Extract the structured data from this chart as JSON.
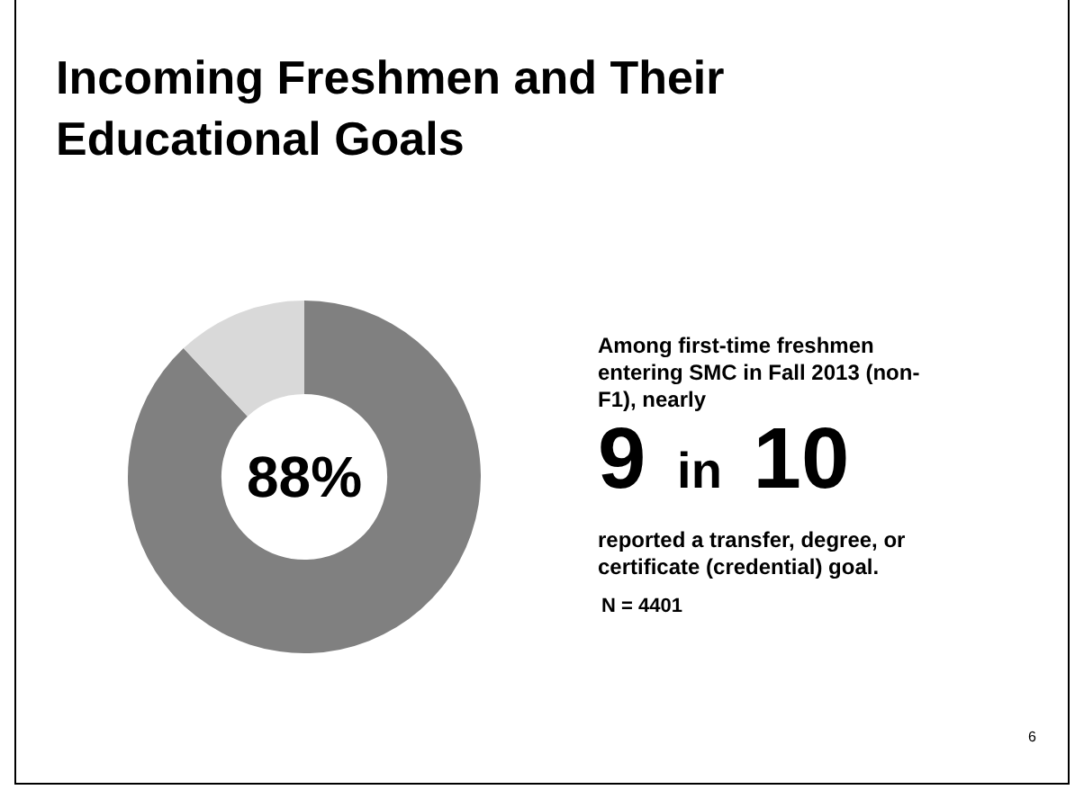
{
  "chart_data": {
    "type": "donut",
    "title": "Incoming Freshmen and Their Educational Goals",
    "categories": [
      null,
      null
    ],
    "values": [
      88,
      12
    ],
    "colors": [
      "#808080",
      "#d9d9d9"
    ],
    "legend": false,
    "annotations": [
      "88%",
      "Among first-time freshmen entering SMC in Fall 2013 (non-F1), nearly",
      "9 in 10",
      "reported a transfer, degree, or certificate (credential) goal.",
      "N = 4401",
      "6"
    ]
  }
}
